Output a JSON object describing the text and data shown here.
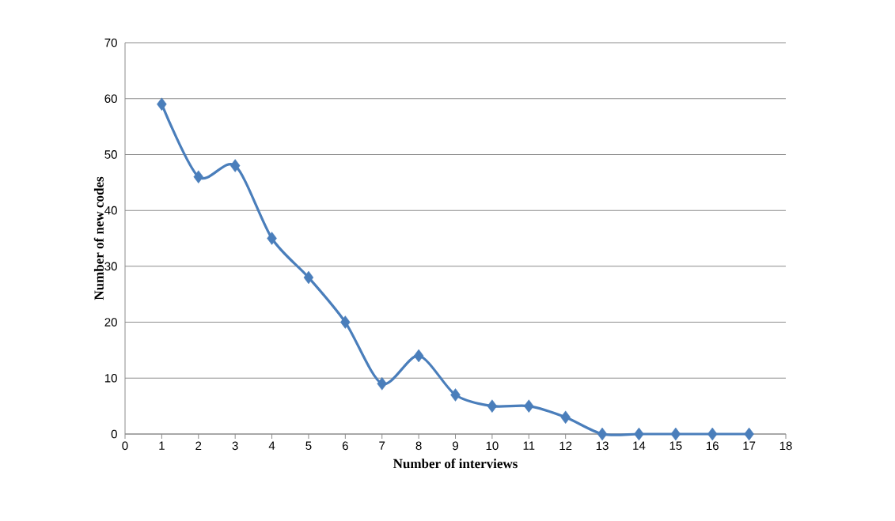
{
  "chart_data": {
    "type": "line",
    "xlabel": "Number of interviews",
    "ylabel": "Number of new codes",
    "x": [
      1,
      2,
      3,
      4,
      5,
      6,
      7,
      8,
      9,
      10,
      11,
      12,
      13,
      14,
      15,
      16,
      17
    ],
    "series": [
      {
        "color": "#4a7ebb",
        "values": [
          59,
          46,
          48,
          35,
          28,
          20,
          9,
          14,
          7,
          5,
          5,
          3,
          0,
          0,
          0,
          0,
          0
        ]
      }
    ],
    "xlim": [
      0,
      18
    ],
    "ylim": [
      0,
      70
    ],
    "xticks": [
      0,
      1,
      2,
      3,
      4,
      5,
      6,
      7,
      8,
      9,
      10,
      11,
      12,
      13,
      14,
      15,
      16,
      17,
      18
    ],
    "yticks": [
      0,
      10,
      20,
      30,
      40,
      50,
      60,
      70
    ],
    "grid": "y",
    "marker": "diamond",
    "line_style": "solid"
  }
}
